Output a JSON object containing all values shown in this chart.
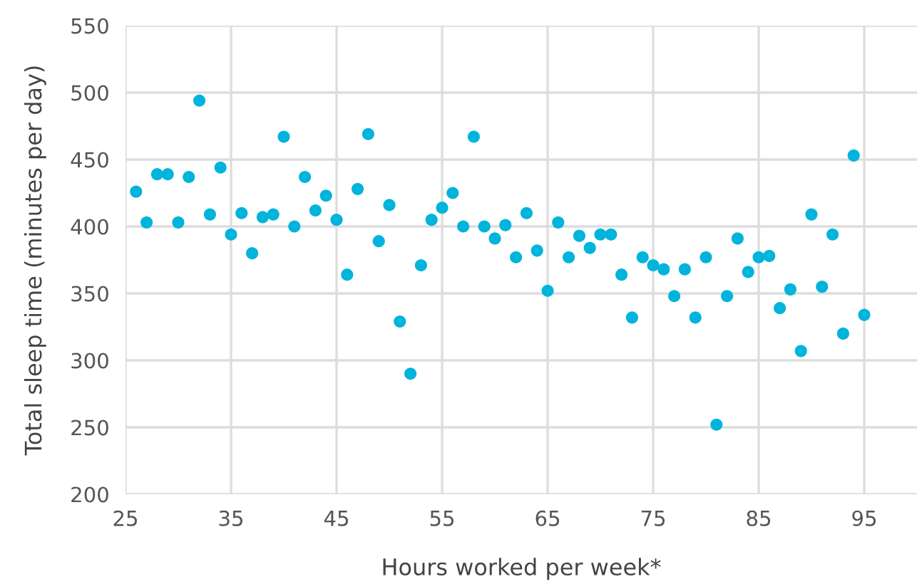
{
  "chart_data": {
    "type": "scatter",
    "xlabel": "Hours worked per week*",
    "ylabel": "Total sleep time (minutes per day)",
    "x": [
      26,
      27,
      28,
      29,
      30,
      31,
      32,
      33,
      34,
      35,
      36,
      37,
      38,
      39,
      40,
      41,
      42,
      43,
      44,
      45,
      46,
      47,
      48,
      49,
      50,
      51,
      52,
      53,
      54,
      55,
      56,
      57,
      58,
      59,
      60,
      61,
      62,
      63,
      64,
      65,
      66,
      67,
      68,
      69,
      70,
      71,
      72,
      73,
      74,
      75,
      76,
      77,
      78,
      79,
      80,
      81,
      82,
      83,
      84,
      85,
      86,
      87,
      88,
      89,
      90,
      91,
      92,
      93,
      94,
      95
    ],
    "series": [
      {
        "color": "#00b4dc",
        "values": [
          426,
          403,
          439,
          439,
          403,
          437,
          494,
          409,
          444,
          394,
          410,
          380,
          407,
          409,
          467,
          400,
          437,
          412,
          423,
          405,
          364,
          428,
          469,
          389,
          416,
          329,
          290,
          371,
          405,
          414,
          425,
          400,
          467,
          400,
          391,
          401,
          377,
          410,
          382,
          352,
          403,
          377,
          393,
          384,
          394,
          394,
          364,
          332,
          377,
          371,
          368,
          348,
          368,
          332,
          377,
          252,
          348,
          391,
          366,
          377,
          378,
          339,
          353,
          307,
          409,
          355,
          394,
          320,
          453,
          334
        ]
      }
    ],
    "xlim": [
      25,
      100
    ],
    "ylim": [
      200,
      550
    ],
    "xticks": [
      25,
      35,
      45,
      55,
      65,
      75,
      85,
      95
    ],
    "yticks": [
      200,
      250,
      300,
      350,
      400,
      450,
      500,
      550
    ],
    "grid": true,
    "marker": "circle"
  }
}
